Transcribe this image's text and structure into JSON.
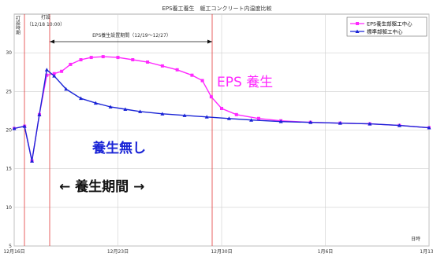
{
  "chart_data": {
    "type": "line",
    "title": "EPS養工養生　躯工コンクリート内温度比較",
    "xlabel": "日時",
    "ylabel": "",
    "ylim": [
      5,
      35
    ],
    "y_ticks": [
      5,
      10,
      15,
      20,
      25,
      30
    ],
    "x_ticks": [
      "12月16日",
      "12月23日",
      "12月30日",
      "1月6日",
      "1月13日"
    ],
    "x_range_days": [
      0,
      28
    ],
    "grid": true,
    "legend_position": "top-right",
    "series": [
      {
        "name": "EPS養生部躯工中心",
        "color": "#ff28ff",
        "marker": "square",
        "x_days": [
          0,
          0.7,
          1.2,
          1.7,
          2.2,
          2.7,
          3.2,
          3.8,
          4.5,
          5.2,
          6,
          7,
          8,
          9,
          10,
          11,
          12,
          12.7,
          13.3,
          14,
          15,
          16.5,
          18,
          20,
          22,
          24,
          26,
          28
        ],
        "values": [
          20.2,
          20.5,
          16,
          22,
          27.1,
          27.3,
          27.6,
          28.5,
          29.1,
          29.4,
          29.5,
          29.4,
          29.1,
          28.8,
          28.3,
          27.8,
          27.1,
          26.4,
          24.3,
          22.8,
          22.0,
          21.5,
          21.2,
          21.0,
          20.9,
          20.8,
          20.6,
          20.3
        ]
      },
      {
        "name": "標準部躯工中心",
        "color": "#1a24d6",
        "marker": "triangle",
        "x_days": [
          0,
          0.7,
          1.2,
          1.7,
          2.2,
          2.7,
          3.5,
          4.5,
          5.5,
          6.5,
          7.5,
          8.5,
          10,
          11.5,
          13,
          14.5,
          16,
          18,
          20,
          22,
          24,
          26,
          28
        ],
        "values": [
          20.2,
          20.5,
          16,
          22,
          27.8,
          27.0,
          25.3,
          24.1,
          23.5,
          23.0,
          22.7,
          22.4,
          22.1,
          21.9,
          21.7,
          21.5,
          21.3,
          21.1,
          21.0,
          20.9,
          20.8,
          20.6,
          20.3
        ]
      }
    ],
    "annotations": {
      "start_label": "打設",
      "start_datetime": "（12/18 10:00）",
      "eps_period": "EPS養生設置期間（12/19～12/27）",
      "big_eps": "EPS 養生",
      "big_none": "養生無し",
      "big_period": "←  養生期間  →",
      "left_marker": "打設時期"
    }
  }
}
